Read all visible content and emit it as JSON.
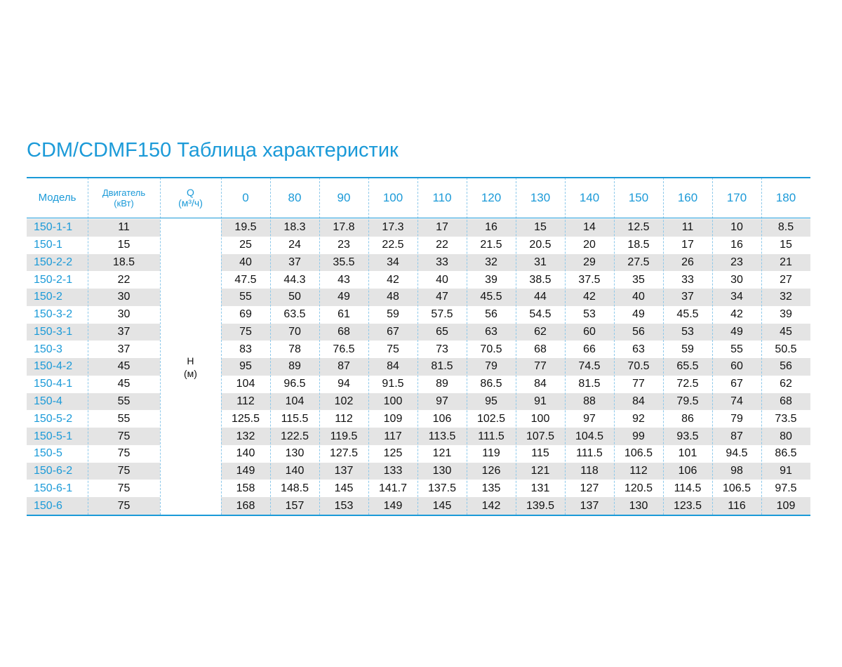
{
  "title": "CDM/CDMF150 Таблица характеристик",
  "header": {
    "model": "Модель",
    "motor": "Двигатель\n(кВт)",
    "q": "Q\n(м³/ч)",
    "flows": [
      0,
      80,
      90,
      100,
      110,
      120,
      130,
      140,
      150,
      160,
      170,
      180
    ]
  },
  "h_label": "H\n(м)",
  "rows": [
    {
      "model": "150-1-1",
      "motor": 11,
      "head": [
        19.5,
        18.3,
        17.8,
        17.3,
        17,
        16,
        15,
        14,
        12.5,
        11,
        10,
        8.5
      ]
    },
    {
      "model": "150-1",
      "motor": 15,
      "head": [
        25,
        24,
        23,
        22.5,
        22,
        21.5,
        20.5,
        20,
        18.5,
        17,
        16,
        15
      ]
    },
    {
      "model": "150-2-2",
      "motor": 18.5,
      "head": [
        40,
        37,
        35.5,
        34,
        33,
        32,
        31,
        29,
        27.5,
        26,
        23,
        21
      ]
    },
    {
      "model": "150-2-1",
      "motor": 22,
      "head": [
        47.5,
        44.3,
        43,
        42,
        40,
        39,
        38.5,
        37.5,
        35,
        33,
        30,
        27
      ]
    },
    {
      "model": "150-2",
      "motor": 30,
      "head": [
        55,
        50,
        49,
        48,
        47,
        45.5,
        44,
        42,
        40,
        37,
        34,
        32
      ]
    },
    {
      "model": "150-3-2",
      "motor": 30,
      "head": [
        69,
        63.5,
        61,
        59,
        57.5,
        56,
        54.5,
        53,
        49,
        45.5,
        42,
        39
      ]
    },
    {
      "model": "150-3-1",
      "motor": 37,
      "head": [
        75,
        70,
        68,
        67,
        65,
        63,
        62,
        60,
        56,
        53,
        49,
        45
      ]
    },
    {
      "model": "150-3",
      "motor": 37,
      "head": [
        83,
        78,
        76.5,
        75,
        73,
        70.5,
        68,
        66,
        63,
        59,
        55,
        50.5
      ]
    },
    {
      "model": "150-4-2",
      "motor": 45,
      "head": [
        95,
        89,
        87,
        84,
        81.5,
        79,
        77,
        74.5,
        70.5,
        65.5,
        60,
        56
      ]
    },
    {
      "model": "150-4-1",
      "motor": 45,
      "head": [
        104,
        96.5,
        94,
        91.5,
        89,
        86.5,
        84,
        81.5,
        77,
        72.5,
        67,
        62
      ]
    },
    {
      "model": "150-4",
      "motor": 55,
      "head": [
        112,
        104,
        102,
        100,
        97,
        95,
        91,
        88,
        84,
        79.5,
        74,
        68
      ]
    },
    {
      "model": "150-5-2",
      "motor": 55,
      "head": [
        125.5,
        115.5,
        112,
        109,
        106,
        102.5,
        100,
        97,
        92,
        86,
        79,
        73.5
      ]
    },
    {
      "model": "150-5-1",
      "motor": 75,
      "head": [
        132,
        122.5,
        119.5,
        117,
        113.5,
        111.5,
        107.5,
        104.5,
        99,
        93.5,
        87,
        80
      ]
    },
    {
      "model": "150-5",
      "motor": 75,
      "head": [
        140,
        130,
        127.5,
        125,
        121,
        119,
        115,
        111.5,
        106.5,
        101,
        94.5,
        86.5
      ]
    },
    {
      "model": "150-6-2",
      "motor": 75,
      "head": [
        149,
        140,
        137,
        133,
        130,
        126,
        121,
        118,
        112,
        106,
        98,
        91
      ]
    },
    {
      "model": "150-6-1",
      "motor": 75,
      "head": [
        158,
        148.5,
        145,
        141.7,
        137.5,
        135,
        131,
        127,
        120.5,
        114.5,
        106.5,
        97.5
      ]
    },
    {
      "model": "150-6",
      "motor": 75,
      "head": [
        168,
        157,
        153,
        149,
        145,
        142,
        139.5,
        137,
        130,
        123.5,
        116,
        109
      ]
    }
  ]
}
